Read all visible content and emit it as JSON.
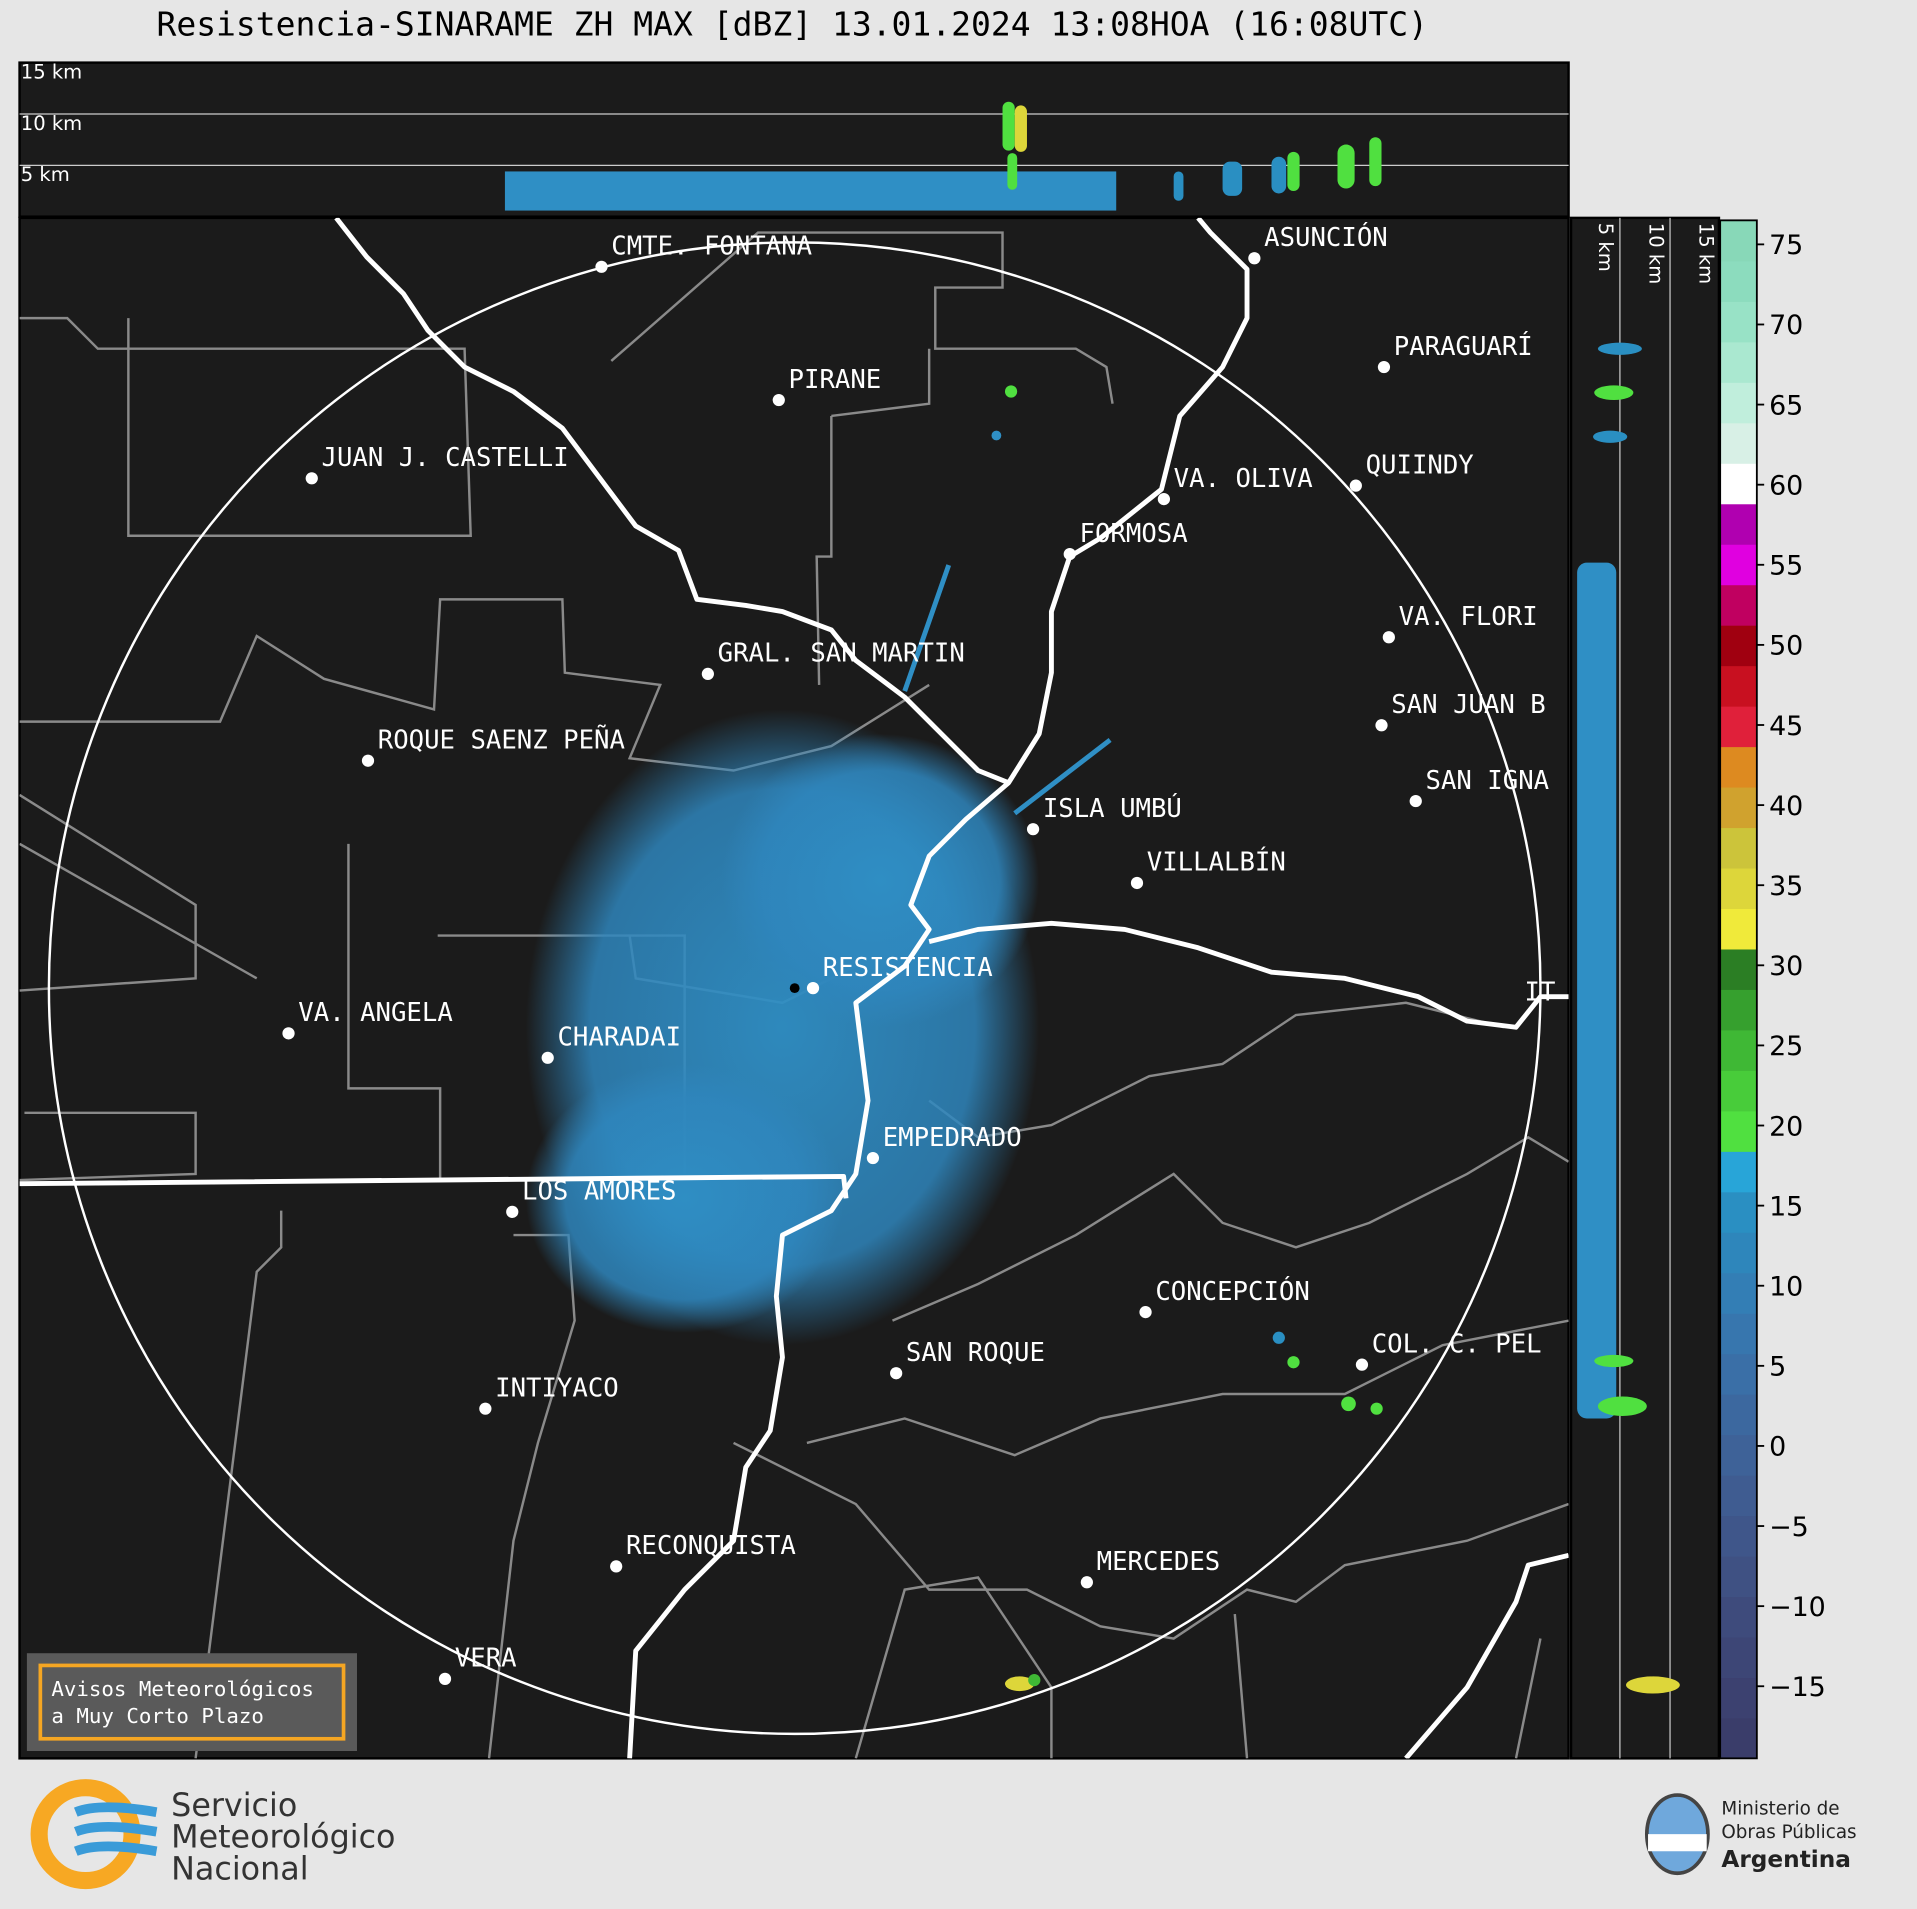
{
  "title": "Resistencia-SINARAME ZH MAX [dBZ] 13.01.2024 13:08HOA (16:08UTC)",
  "profile_top": {
    "height_labels": [
      "15 km",
      "10 km",
      "5 km"
    ]
  },
  "profile_side": {
    "height_labels": [
      "5 km",
      "10 km",
      "15 km"
    ]
  },
  "cities": [
    "CMTE. FONTANA",
    "PIRANE",
    "JUAN J. CASTELLI",
    "ASUNCIÓN",
    "PARAGUARÍ",
    "QUIINDY",
    "VA. OLIVA",
    "FORMOSA",
    "VA. FLORI",
    "GRAL. SAN MARTIN",
    "SAN JUAN B",
    "ROQUE SAENZ PEÑA",
    "SAN IGNA",
    "ISLA UMBÚ",
    "VILLALBÍN",
    "RESISTENCIA",
    "VA. ANGELA",
    "CHARADAI",
    "EMPEDRADO",
    "LOS AMORES",
    "CONCEPCIÓN",
    "SAN ROQUE",
    "COL. C. PEL",
    "INTIYACO",
    "RECONQUISTA",
    "MERCEDES",
    "VERA",
    "IT"
  ],
  "colorbar": {
    "lim": [
      -19.5,
      76.5
    ],
    "ticks": [
      75,
      70,
      65,
      60,
      55,
      50,
      45,
      40,
      35,
      30,
      25,
      20,
      15,
      10,
      5,
      0,
      {
        "value": -5,
        "label": "−5"
      },
      {
        "value": -10,
        "label": "−10"
      },
      {
        "value": -15,
        "label": "−15"
      }
    ],
    "colors": [
      "#3a3d6a",
      "#3c4170",
      "#3d4676",
      "#3e4b7c",
      "#3f5183",
      "#3f568a",
      "#3f5c91",
      "#3e6298",
      "#3c689f",
      "#3a6fa7",
      "#3776ae",
      "#337eb5",
      "#2e86bb",
      "#2a8fc2",
      "#28a5d8",
      "#50e040",
      "#48cc3a",
      "#3fb835",
      "#36a02e",
      "#2b7e24",
      "#f0ea3a",
      "#ddd63a",
      "#ccc43a",
      "#d0a22e",
      "#dd8a20",
      "#e0203a",
      "#c81020",
      "#a00010",
      "#c00060",
      "#e000e0",
      "#b000b0",
      "#ffffff",
      "#d8f0e6",
      "#c0eedc",
      "#aae8d0",
      "#98e2c6",
      "#8cdcbe",
      "#88d8b8"
    ]
  },
  "notice": [
    "Avisos Meteorológicos",
    "a Muy Corto Plazo"
  ],
  "logos": {
    "smn": [
      "Servicio",
      "Meteorológico",
      "Nacional"
    ],
    "ministry": [
      "Ministerio de",
      "Obras Públicas",
      "Argentina"
    ]
  }
}
